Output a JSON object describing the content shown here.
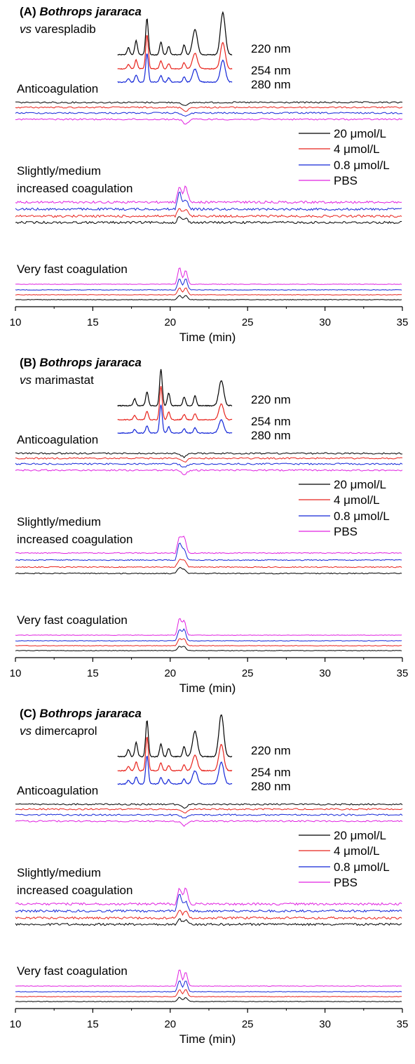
{
  "colors": {
    "ch220": "#000000",
    "ch254": "#e8231c",
    "ch280": "#1326d8",
    "conc20": "#000000",
    "conc4": "#e8231c",
    "conc08": "#1326d8",
    "pbs": "#e020e0"
  },
  "chart_data": [
    {
      "type": "line",
      "panel_label": "(A)",
      "title_species": "Bothrops jararaca",
      "title_vs": "vs",
      "title_compound": "varespladib",
      "xlabel": "Time (min)",
      "xlim": [
        10,
        35
      ],
      "xticks": [
        "10",
        "15",
        "20",
        "25",
        "30",
        "35"
      ],
      "uv_series": [
        {
          "name": "220 nm"
        },
        {
          "name": "254 nm"
        },
        {
          "name": "280 nm"
        }
      ],
      "concentration_series": [
        {
          "name": "20 μmol/L"
        },
        {
          "name": "4 μmol/L"
        },
        {
          "name": "0.8 μmol/L"
        },
        {
          "name": "PBS"
        }
      ],
      "track_labels": [
        "Anticoagulation",
        "Slightly/medium",
        "increased coagulation",
        "Very fast coagulation"
      ],
      "uv_peaks_min": [
        17.3,
        17.8,
        18.5,
        19.4,
        19.9,
        20.9,
        21.6,
        23.4
      ],
      "anticoagulation_dip_min": 21.0,
      "coagulation_peaks_min": [
        20.6,
        21.0
      ]
    },
    {
      "type": "line",
      "panel_label": "(B)",
      "title_species": "Bothrops jararaca",
      "title_vs": "vs",
      "title_compound": "marimastat",
      "xlabel": "Time (min)",
      "xlim": [
        10,
        35
      ],
      "xticks": [
        "10",
        "15",
        "20",
        "25",
        "30",
        "35"
      ],
      "uv_series": [
        {
          "name": "220 nm"
        },
        {
          "name": "254 nm"
        },
        {
          "name": "280 nm"
        }
      ],
      "concentration_series": [
        {
          "name": "20 μmol/L"
        },
        {
          "name": "4 μmol/L"
        },
        {
          "name": "0.8 μmol/L"
        },
        {
          "name": "PBS"
        }
      ],
      "track_labels": [
        "Anticoagulation",
        "Slightly/medium",
        "increased coagulation",
        "Very fast coagulation"
      ],
      "uv_peaks_min": [
        17.7,
        18.5,
        19.4,
        19.9,
        20.9,
        21.6,
        23.3
      ],
      "anticoagulation_dip_min": 20.9,
      "coagulation_peaks_min": [
        20.6,
        20.9
      ]
    },
    {
      "type": "line",
      "panel_label": "(C)",
      "title_species": "Bothrops jararaca",
      "title_vs": "vs",
      "title_compound": "dimercaprol",
      "xlabel": "Time (min)",
      "xlim": [
        10,
        35
      ],
      "xticks": [
        "10",
        "15",
        "20",
        "25",
        "30",
        "35"
      ],
      "uv_series": [
        {
          "name": "220 nm"
        },
        {
          "name": "254 nm"
        },
        {
          "name": "280 nm"
        }
      ],
      "concentration_series": [
        {
          "name": "20 μmol/L"
        },
        {
          "name": "4 μmol/L"
        },
        {
          "name": "0.8 μmol/L"
        },
        {
          "name": "PBS"
        }
      ],
      "track_labels": [
        "Anticoagulation",
        "Slightly/medium",
        "increased coagulation",
        "Very fast coagulation"
      ],
      "uv_peaks_min": [
        17.3,
        17.8,
        18.5,
        19.4,
        19.9,
        20.9,
        21.6,
        23.3
      ],
      "anticoagulation_dip_min": 20.9,
      "coagulation_peaks_min": [
        20.6,
        21.0
      ]
    }
  ]
}
